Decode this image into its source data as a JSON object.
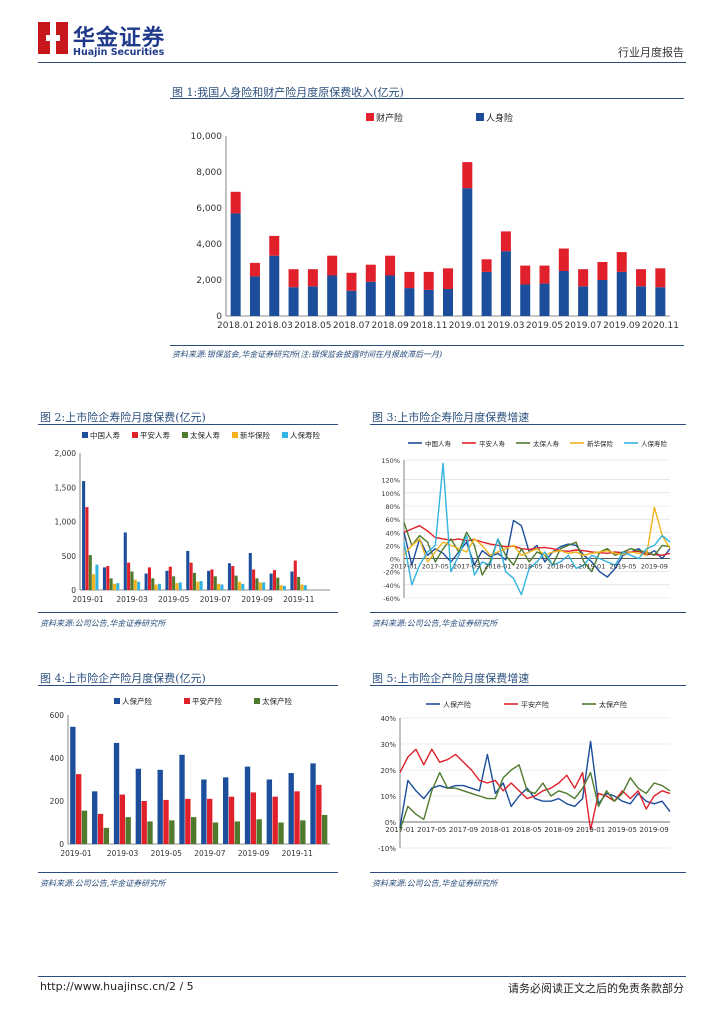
{
  "header": {
    "brand_cn": "华金证券",
    "brand_en": "Huajin Securities",
    "report_type": "行业月度报告",
    "colors": {
      "brand_red": "#c8161d",
      "brand_blue": "#1f3a8a"
    }
  },
  "footer": {
    "url_page": "http://www.huajinsc.cn/2 / 5",
    "disclaimer": "请务必阅读正文之后的免责条款部分"
  },
  "figures": [
    {
      "title": "图 1:我国人身险和财产险月度原保费收入(亿元)",
      "source": "资料来源:银保监会,华金证券研究所(注:银保监会披露时间在月报故滞后一月)"
    },
    {
      "title": "图 2:上市险企寿险月度保费(亿元)",
      "source": "资料来源:公司公告,华金证券研究所"
    },
    {
      "title": "图 3:上市险企寿险月度保费增速",
      "source": "资料来源:公司公告,华金证券研究所"
    },
    {
      "title": "图 4:上市险企产险月度保费(亿元)",
      "source": "资料来源:公司公告,华金证券研究所"
    },
    {
      "title": "图 5:上市险企产险月度保费增速",
      "source": "资料来源:公司公告,华金证券研究所"
    }
  ],
  "chart_data": [
    {
      "type": "bar",
      "stacked": true,
      "categories": [
        "2018.01",
        "2018.02",
        "2018.03",
        "2018.04",
        "2018.05",
        "2018.06",
        "2018.07",
        "2018.08",
        "2018.09",
        "2018.10",
        "2018.11",
        "2018.12",
        "2019.01",
        "2019.02",
        "2019.03",
        "2019.04",
        "2019.05",
        "2019.06",
        "2019.07",
        "2019.08",
        "2019.09",
        "2019.10",
        "2020.11"
      ],
      "tick_labels": [
        "2018.01",
        "2018.03",
        "2018.05",
        "2018.07",
        "2018.09",
        "2018.11",
        "2019.01",
        "2019.03",
        "2019.05",
        "2019.07",
        "2019.09",
        "2020.11"
      ],
      "tick_indices": [
        0,
        2,
        4,
        6,
        8,
        10,
        12,
        14,
        16,
        18,
        20,
        22
      ],
      "series": [
        {
          "name": "人身险",
          "color": "#1c4e9c",
          "values": [
            5700,
            2200,
            3350,
            1600,
            1650,
            2250,
            1400,
            1900,
            2250,
            1550,
            1450,
            1500,
            7100,
            2450,
            3600,
            1750,
            1800,
            2500,
            1650,
            2000,
            2450,
            1650,
            1600
          ]
        },
        {
          "name": "财产险",
          "color": "#e0202a",
          "values": [
            1200,
            750,
            1100,
            1000,
            950,
            1100,
            1000,
            950,
            1100,
            900,
            1000,
            1150,
            1450,
            700,
            1100,
            1050,
            1000,
            1250,
            950,
            1000,
            1100,
            950,
            1050
          ]
        }
      ],
      "legend_order": [
        "财产险",
        "人身险"
      ],
      "ylim": [
        0,
        10000
      ],
      "yticks": [
        0,
        2000,
        4000,
        6000,
        8000,
        10000
      ],
      "ytick_labels": [
        "0",
        "2,000",
        "4,000",
        "6,000",
        "8,000",
        "10,000"
      ]
    },
    {
      "type": "bar",
      "categories": [
        "2019-01",
        "2019-02",
        "2019-03",
        "2019-04",
        "2019-05",
        "2019-06",
        "2019-07",
        "2019-08",
        "2019-09",
        "2019-10",
        "2019-11",
        "2019-12"
      ],
      "tick_labels": [
        "2019-01",
        "2019-03",
        "2019-05",
        "2019-07",
        "2019-09",
        "2019-11"
      ],
      "tick_indices": [
        0,
        2,
        4,
        6,
        8,
        10
      ],
      "series": [
        {
          "name": "中国人寿",
          "color": "#1c4e9c",
          "values": [
            1590,
            330,
            840,
            240,
            280,
            570,
            280,
            390,
            540,
            240,
            270,
            0
          ]
        },
        {
          "name": "平安人寿",
          "color": "#e0202a",
          "values": [
            1210,
            350,
            400,
            330,
            340,
            400,
            300,
            350,
            300,
            290,
            430,
            0
          ]
        },
        {
          "name": "太保人寿",
          "color": "#4f7a2e",
          "values": [
            510,
            170,
            270,
            170,
            200,
            250,
            200,
            210,
            170,
            180,
            190,
            0
          ]
        },
        {
          "name": "新华保险",
          "color": "#f2b21b",
          "values": [
            230,
            90,
            150,
            80,
            100,
            120,
            90,
            120,
            110,
            70,
            80,
            0
          ]
        },
        {
          "name": "人保寿险",
          "color": "#33b3e0",
          "values": [
            370,
            100,
            120,
            90,
            110,
            130,
            80,
            90,
            110,
            60,
            70,
            0
          ]
        }
      ],
      "ylim": [
        0,
        2000
      ],
      "yticks": [
        0,
        500,
        1000,
        1500,
        2000
      ],
      "ytick_labels": [
        "0",
        "500",
        "1,000",
        "1,500",
        "2,000"
      ]
    },
    {
      "type": "line",
      "x": [
        "2017-01",
        "2017-02",
        "2017-03",
        "2017-04",
        "2017-05",
        "2017-06",
        "2017-07",
        "2017-08",
        "2017-09",
        "2017-10",
        "2017-11",
        "2017-12",
        "2018-01",
        "2018-02",
        "2018-03",
        "2018-04",
        "2018-05",
        "2018-06",
        "2018-07",
        "2018-08",
        "2018-09",
        "2018-10",
        "2018-11",
        "2018-12",
        "2019-01",
        "2019-02",
        "2019-03",
        "2019-04",
        "2019-05",
        "2019-06",
        "2019-07",
        "2019-08",
        "2019-09",
        "2019-10",
        "2019-11"
      ],
      "tick_labels": [
        "2017-01",
        "2017-05",
        "2017-09",
        "2018-01",
        "2018-05",
        "2018-09",
        "2019-01",
        "2019-05",
        "2019-09"
      ],
      "tick_indices": [
        0,
        4,
        8,
        12,
        16,
        20,
        24,
        28,
        32
      ],
      "series": [
        {
          "name": "中国人寿",
          "color": "#1c4e9c",
          "values": [
            40,
            -10,
            30,
            5,
            15,
            8,
            -5,
            10,
            25,
            -10,
            12,
            3,
            8,
            -2,
            58,
            50,
            10,
            20,
            -5,
            10,
            18,
            22,
            20,
            5,
            -5,
            -20,
            -28,
            -15,
            5,
            10,
            15,
            5,
            12,
            0,
            15
          ]
        },
        {
          "name": "平安人寿",
          "color": "#e0202a",
          "values": [
            40,
            45,
            50,
            42,
            32,
            30,
            28,
            30,
            27,
            29,
            25,
            22,
            20,
            18,
            19,
            15,
            14,
            16,
            17,
            15,
            12,
            11,
            13,
            12,
            10,
            9,
            8,
            10,
            9,
            10,
            11,
            7,
            6,
            5,
            8
          ]
        },
        {
          "name": "太保人寿",
          "color": "#4f7a2e",
          "values": [
            55,
            20,
            35,
            25,
            -5,
            15,
            30,
            10,
            40,
            20,
            -25,
            -5,
            30,
            5,
            -10,
            15,
            -5,
            10,
            5,
            -10,
            15,
            20,
            25,
            -5,
            -20,
            10,
            15,
            5,
            10,
            15,
            12,
            10,
            5,
            20,
            18
          ]
        },
        {
          "name": "新华保险",
          "color": "#f2b21b",
          "values": [
            5,
            20,
            30,
            -5,
            10,
            25,
            20,
            15,
            10,
            30,
            20,
            5,
            10,
            15,
            20,
            5,
            10,
            15,
            5,
            10,
            12,
            8,
            10,
            5,
            8,
            10,
            12,
            8,
            6,
            10,
            8,
            5,
            78,
            35,
            15
          ]
        },
        {
          "name": "人保寿险",
          "color": "#33b3e0",
          "values": [
            25,
            -40,
            -10,
            10,
            20,
            145,
            -20,
            5,
            35,
            -25,
            -5,
            -10,
            30,
            -20,
            -30,
            -55,
            -15,
            -5,
            10,
            -10,
            -5,
            5,
            -15,
            -10,
            5,
            0,
            -5,
            -10,
            10,
            5,
            0,
            15,
            20,
            35,
            25
          ]
        }
      ],
      "ylim": [
        -60,
        150
      ],
      "yticks": [
        -60,
        -40,
        -20,
        0,
        20,
        40,
        60,
        80,
        100,
        120,
        150
      ],
      "ytick_labels": [
        "-60%",
        "-40%",
        "-20%",
        "0%",
        "20%",
        "40%",
        "60%",
        "80%",
        "100%",
        "120%",
        "150%"
      ]
    },
    {
      "type": "bar",
      "categories": [
        "2019-01",
        "2019-02",
        "2019-03",
        "2019-04",
        "2019-05",
        "2019-06",
        "2019-07",
        "2019-08",
        "2019-09",
        "2019-10",
        "2019-11",
        "2019-12"
      ],
      "tick_labels": [
        "2019-01",
        "2019-03",
        "2019-05",
        "2019-07",
        "2019-09",
        "2019-11"
      ],
      "tick_indices": [
        0,
        2,
        4,
        6,
        8,
        10
      ],
      "series": [
        {
          "name": "人保产险",
          "color": "#1c4e9c",
          "values": [
            545,
            245,
            470,
            350,
            345,
            415,
            300,
            310,
            360,
            300,
            330,
            375
          ]
        },
        {
          "name": "平安产险",
          "color": "#e0202a",
          "values": [
            325,
            140,
            230,
            200,
            205,
            210,
            210,
            220,
            240,
            220,
            245,
            275
          ]
        },
        {
          "name": "太保产险",
          "color": "#4f7a2e",
          "values": [
            155,
            75,
            125,
            105,
            110,
            125,
            100,
            105,
            115,
            100,
            110,
            135
          ]
        }
      ],
      "ylim": [
        0,
        600
      ],
      "yticks": [
        0,
        200,
        400,
        600
      ],
      "ytick_labels": [
        "0",
        "200",
        "400",
        "600"
      ]
    },
    {
      "type": "line",
      "x": [
        "2017-01",
        "2017-02",
        "2017-03",
        "2017-04",
        "2017-05",
        "2017-06",
        "2017-07",
        "2017-08",
        "2017-09",
        "2017-10",
        "2017-11",
        "2017-12",
        "2018-01",
        "2018-02",
        "2018-03",
        "2018-04",
        "2018-05",
        "2018-06",
        "2018-07",
        "2018-08",
        "2018-09",
        "2018-10",
        "2018-11",
        "2018-12",
        "2019-01",
        "2019-02",
        "2019-03",
        "2019-04",
        "2019-05",
        "2019-06",
        "2019-07",
        "2019-08",
        "2019-09",
        "2019-10",
        "2019-11"
      ],
      "tick_labels": [
        "2017-01",
        "2017-05",
        "2017-09",
        "2018-01",
        "2018-05",
        "2018-09",
        "2019-01",
        "2019-05",
        "2019-09"
      ],
      "tick_indices": [
        0,
        4,
        8,
        12,
        16,
        20,
        24,
        28,
        32
      ],
      "series": [
        {
          "name": "人保产险",
          "color": "#1c4e9c",
          "values": [
            -2,
            16,
            12,
            9,
            13,
            14,
            13,
            14,
            14,
            13,
            12,
            26,
            11,
            15,
            6,
            10,
            13,
            9,
            8,
            8,
            9,
            7,
            6,
            9,
            31,
            7,
            11,
            10,
            8,
            7,
            11,
            8,
            7,
            8,
            4
          ]
        },
        {
          "name": "平安产险",
          "color": "#e0202a",
          "values": [
            19,
            25,
            28,
            22,
            28,
            23,
            24,
            26,
            23,
            20,
            16,
            15,
            16,
            12,
            15,
            12,
            9,
            10,
            12,
            13,
            15,
            18,
            13,
            19,
            -3,
            11,
            10,
            8,
            12,
            9,
            12,
            5,
            10,
            12,
            11
          ]
        },
        {
          "name": "太保产险",
          "color": "#4f7a2e",
          "values": [
            -3,
            6,
            3,
            1,
            12,
            19,
            13,
            13,
            12,
            11,
            10,
            9,
            9,
            17,
            20,
            22,
            12,
            11,
            15,
            10,
            12,
            11,
            9,
            13,
            19,
            6,
            12,
            8,
            11,
            17,
            13,
            11,
            15,
            14,
            12
          ]
        }
      ],
      "ylim": [
        -10,
        40
      ],
      "yticks": [
        -10,
        0,
        10,
        20,
        30,
        40
      ],
      "ytick_labels": [
        "-10%",
        "0%",
        "10%",
        "20%",
        "30%",
        "40%"
      ]
    }
  ]
}
